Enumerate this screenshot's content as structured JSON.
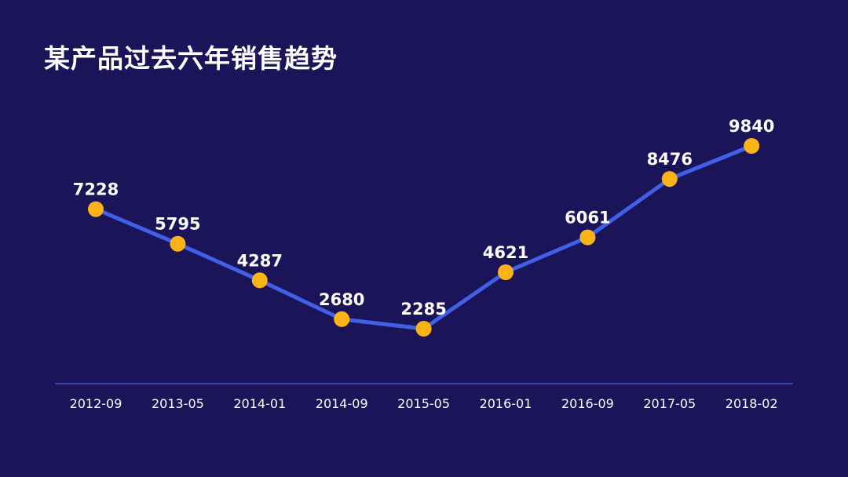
{
  "title": "某产品过去六年销售趋势",
  "colors": {
    "background": "#1b1459",
    "line": "#4060e8",
    "marker": "#fbb315",
    "axis": "#3a56d6",
    "text": "#ffffff"
  },
  "chart_data": {
    "type": "line",
    "title": "某产品过去六年销售趋势",
    "xlabel": "",
    "ylabel": "",
    "categories": [
      "2012-09",
      "2013-05",
      "2014-01",
      "2014-09",
      "2015-05",
      "2016-01",
      "2016-09",
      "2017-05",
      "2018-02"
    ],
    "series": [
      {
        "values": [
          7228,
          5795,
          4287,
          2680,
          2285,
          4621,
          6061,
          8476,
          9840
        ]
      }
    ],
    "data_labels": true,
    "grid": false,
    "legend": false
  }
}
